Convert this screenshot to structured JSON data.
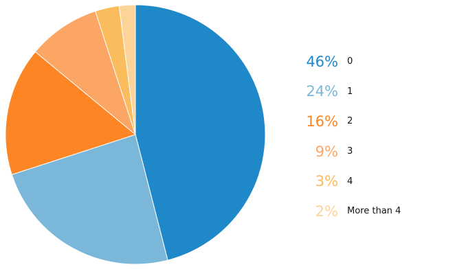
{
  "chart_data": {
    "type": "pie",
    "start_angle_deg": 0,
    "direction": "clockwise",
    "legend_position": "right",
    "slices": [
      {
        "label": "0",
        "value": 46,
        "display": "46%",
        "color": "#1f88c8"
      },
      {
        "label": "1",
        "value": 24,
        "display": "24%",
        "color": "#7ab7d9"
      },
      {
        "label": "2",
        "value": 16,
        "display": "16%",
        "color": "#fd8524"
      },
      {
        "label": "3",
        "value": 9,
        "display": "9%",
        "color": "#fba664"
      },
      {
        "label": "4",
        "value": 3,
        "display": "3%",
        "color": "#fbbc5e"
      },
      {
        "label": "More than 4",
        "value": 2,
        "display": "2%",
        "color": "#fdd498"
      }
    ]
  }
}
